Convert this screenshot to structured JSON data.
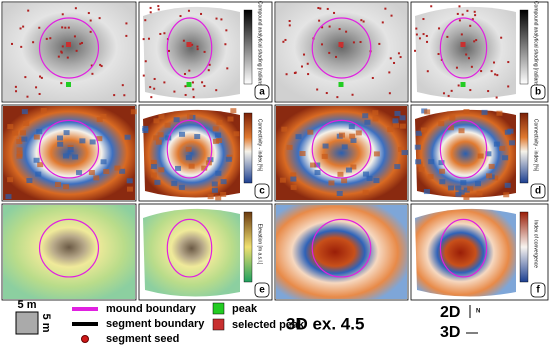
{
  "panels": [
    {
      "letter": "a",
      "colorbar_label": "Compound analytical shading [radians]"
    },
    {
      "letter": "b",
      "colorbar_label": "Compound analytical shading [radians]"
    },
    {
      "letter": "c",
      "colorbar_label": "Connectivity - index [%]"
    },
    {
      "letter": "d",
      "colorbar_label": "Connectivity - index [%]"
    },
    {
      "letter": "e",
      "colorbar_label": "Elevation [m a.s.l.]"
    },
    {
      "letter": "f",
      "colorbar_label": "Index of convergence"
    }
  ],
  "legend": {
    "scale_x": "5 m",
    "scale_y": "5 m",
    "mound_boundary": "mound boundary",
    "segment_boundary": "segment boundary",
    "segment_seed": "segment seed",
    "peak": "peak",
    "selected_peak": "selected peak"
  },
  "example": "3D ex. 4.5",
  "orientation": {
    "view2d": "2D",
    "view3d": "3D",
    "north": "N"
  }
}
